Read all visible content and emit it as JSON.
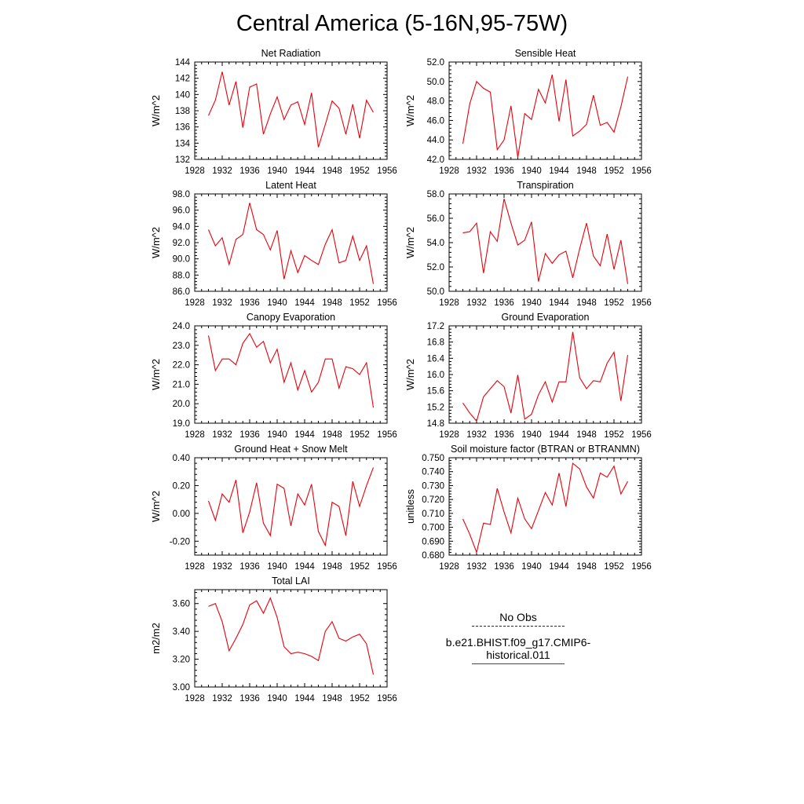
{
  "title": "Central America (5-16N,95-75W)",
  "x_ticks": [
    "1928",
    "1932",
    "1936",
    "1940",
    "1944",
    "1948",
    "1952",
    "1956"
  ],
  "legend": {
    "items": [
      {
        "label": "No Obs",
        "color": "#1a1a8c",
        "style": "dashed"
      },
      {
        "label": "b.e21.BHIST.f09_g17.CMIP6-historical.011",
        "color": "#e8000b",
        "style": "solid"
      }
    ]
  },
  "chart_data": [
    {
      "type": "line",
      "title": "Net Radiation",
      "ylabel": "W/m^2",
      "xlim": [
        1928,
        1956
      ],
      "ylim": [
        132,
        144
      ],
      "yticks": [
        "132",
        "134",
        "136",
        "138",
        "140",
        "142",
        "144"
      ],
      "x": [
        1930,
        1931,
        1932,
        1933,
        1934,
        1935,
        1936,
        1937,
        1938,
        1939,
        1940,
        1941,
        1942,
        1943,
        1944,
        1945,
        1946,
        1947,
        1948,
        1949,
        1950,
        1951,
        1952,
        1953,
        1954
      ],
      "series": [
        {
          "color": "#e8000b",
          "values": [
            137.4,
            139.3,
            142.8,
            138.7,
            141.6,
            135.9,
            140.9,
            141.3,
            135.1,
            137.6,
            139.7,
            136.9,
            138.7,
            139.1,
            136.3,
            140.2,
            133.5,
            136.3,
            139.2,
            138.3,
            135.1,
            138.8,
            134.6,
            139.3,
            137.8
          ]
        }
      ]
    },
    {
      "type": "line",
      "title": "Sensible Heat",
      "ylabel": "W/m^2",
      "xlim": [
        1928,
        1956
      ],
      "ylim": [
        42,
        52
      ],
      "yticks": [
        "42.0",
        "44.0",
        "46.0",
        "48.0",
        "50.0",
        "52.0"
      ],
      "x": [
        1930,
        1931,
        1932,
        1933,
        1934,
        1935,
        1936,
        1937,
        1938,
        1939,
        1940,
        1941,
        1942,
        1943,
        1944,
        1945,
        1946,
        1947,
        1948,
        1949,
        1950,
        1951,
        1952,
        1953,
        1954
      ],
      "series": [
        {
          "color": "#e8000b",
          "values": [
            43.6,
            47.7,
            50.0,
            49.3,
            48.9,
            43.0,
            44.0,
            47.5,
            42.2,
            46.7,
            46.1,
            49.2,
            47.8,
            50.7,
            45.9,
            50.2,
            44.4,
            44.9,
            45.6,
            48.6,
            45.5,
            45.8,
            44.8,
            47.4,
            50.5
          ]
        }
      ]
    },
    {
      "type": "line",
      "title": "Latent Heat",
      "ylabel": "W/m^2",
      "xlim": [
        1928,
        1956
      ],
      "ylim": [
        86,
        98
      ],
      "yticks": [
        "86.0",
        "88.0",
        "90.0",
        "92.0",
        "94.0",
        "96.0",
        "98.0"
      ],
      "x": [
        1930,
        1931,
        1932,
        1933,
        1934,
        1935,
        1936,
        1937,
        1938,
        1939,
        1940,
        1941,
        1942,
        1943,
        1944,
        1945,
        1946,
        1947,
        1948,
        1949,
        1950,
        1951,
        1952,
        1953,
        1954
      ],
      "series": [
        {
          "color": "#e8000b",
          "values": [
            93.6,
            91.6,
            92.6,
            89.3,
            92.4,
            93.0,
            96.9,
            93.6,
            93.0,
            91.1,
            93.5,
            87.5,
            91.0,
            88.3,
            90.4,
            89.8,
            89.3,
            91.8,
            93.6,
            89.5,
            89.8,
            92.8,
            89.8,
            91.6,
            86.9
          ]
        }
      ]
    },
    {
      "type": "line",
      "title": "Transpiration",
      "ylabel": "W/m^2",
      "xlim": [
        1928,
        1956
      ],
      "ylim": [
        50,
        58
      ],
      "yticks": [
        "50.0",
        "52.0",
        "54.0",
        "56.0",
        "58.0"
      ],
      "x": [
        1930,
        1931,
        1932,
        1933,
        1934,
        1935,
        1936,
        1937,
        1938,
        1939,
        1940,
        1941,
        1942,
        1943,
        1944,
        1945,
        1946,
        1947,
        1948,
        1949,
        1950,
        1951,
        1952,
        1953,
        1954
      ],
      "series": [
        {
          "color": "#e8000b",
          "values": [
            54.8,
            54.9,
            55.6,
            51.5,
            54.9,
            54.1,
            57.6,
            55.6,
            53.8,
            54.2,
            55.7,
            50.8,
            53.1,
            52.3,
            53.0,
            53.3,
            51.1,
            53.5,
            55.6,
            52.9,
            52.1,
            54.7,
            51.8,
            54.2,
            50.6
          ]
        }
      ]
    },
    {
      "type": "line",
      "title": "Canopy Evaporation",
      "ylabel": "W/m^2",
      "xlim": [
        1928,
        1956
      ],
      "ylim": [
        19,
        24
      ],
      "yticks": [
        "19.0",
        "20.0",
        "21.0",
        "22.0",
        "23.0",
        "24.0"
      ],
      "x": [
        1930,
        1931,
        1932,
        1933,
        1934,
        1935,
        1936,
        1937,
        1938,
        1939,
        1940,
        1941,
        1942,
        1943,
        1944,
        1945,
        1946,
        1947,
        1948,
        1949,
        1950,
        1951,
        1952,
        1953,
        1954
      ],
      "series": [
        {
          "color": "#e8000b",
          "values": [
            23.5,
            21.7,
            22.3,
            22.3,
            22.0,
            23.1,
            23.6,
            22.9,
            23.2,
            22.1,
            22.8,
            21.1,
            22.1,
            20.7,
            21.7,
            20.6,
            21.1,
            22.3,
            22.3,
            20.8,
            21.9,
            21.8,
            21.5,
            22.1,
            19.8
          ]
        }
      ]
    },
    {
      "type": "line",
      "title": "Ground Evaporation",
      "ylabel": "W/m^2",
      "xlim": [
        1928,
        1956
      ],
      "ylim": [
        14.8,
        17.2
      ],
      "yticks": [
        "14.8",
        "15.2",
        "15.6",
        "16.0",
        "16.4",
        "16.8",
        "17.2"
      ],
      "x": [
        1930,
        1931,
        1932,
        1933,
        1934,
        1935,
        1936,
        1937,
        1938,
        1939,
        1940,
        1941,
        1942,
        1943,
        1944,
        1945,
        1946,
        1947,
        1948,
        1949,
        1950,
        1951,
        1952,
        1953,
        1954
      ],
      "series": [
        {
          "color": "#e8000b",
          "values": [
            15.3,
            15.05,
            14.85,
            15.45,
            15.65,
            15.85,
            15.7,
            15.05,
            15.99,
            14.9,
            15.02,
            15.5,
            15.82,
            15.32,
            15.82,
            15.82,
            17.05,
            15.92,
            15.65,
            15.85,
            15.82,
            16.28,
            16.55,
            15.35,
            16.48
          ]
        }
      ]
    },
    {
      "type": "line",
      "title": "Ground Heat + Snow Melt",
      "ylabel": "W/m^2",
      "xlim": [
        1928,
        1956
      ],
      "ylim": [
        -0.3,
        0.4
      ],
      "yticks": [
        "-0.20",
        "0.00",
        "0.20",
        "0.40"
      ],
      "ytick_values": [
        -0.2,
        0.0,
        0.2,
        0.4
      ],
      "x": [
        1930,
        1931,
        1932,
        1933,
        1934,
        1935,
        1936,
        1937,
        1938,
        1939,
        1940,
        1941,
        1942,
        1943,
        1944,
        1945,
        1946,
        1947,
        1948,
        1949,
        1950,
        1951,
        1952,
        1953,
        1954
      ],
      "series": [
        {
          "color": "#e8000b",
          "values": [
            0.09,
            -0.05,
            0.14,
            0.08,
            0.24,
            -0.14,
            0.01,
            0.22,
            -0.07,
            -0.16,
            0.21,
            0.18,
            -0.09,
            0.14,
            0.06,
            0.21,
            -0.13,
            -0.23,
            0.08,
            0.05,
            -0.16,
            0.23,
            0.05,
            0.2,
            0.33
          ]
        }
      ]
    },
    {
      "type": "line",
      "title": "Soil moisture factor (BTRAN or BTRANMN)",
      "ylabel": "unitless",
      "xlim": [
        1928,
        1956
      ],
      "ylim": [
        0.68,
        0.75
      ],
      "yticks": [
        "0.680",
        "0.690",
        "0.700",
        "0.710",
        "0.720",
        "0.730",
        "0.740",
        "0.750"
      ],
      "x": [
        1930,
        1931,
        1932,
        1933,
        1934,
        1935,
        1936,
        1937,
        1938,
        1939,
        1940,
        1941,
        1942,
        1943,
        1944,
        1945,
        1946,
        1947,
        1948,
        1949,
        1950,
        1951,
        1952,
        1953,
        1954
      ],
      "series": [
        {
          "color": "#e8000b",
          "values": [
            0.706,
            0.695,
            0.682,
            0.703,
            0.702,
            0.728,
            0.711,
            0.696,
            0.721,
            0.706,
            0.699,
            0.712,
            0.725,
            0.716,
            0.739,
            0.715,
            0.746,
            0.742,
            0.729,
            0.721,
            0.739,
            0.736,
            0.744,
            0.724,
            0.733
          ]
        }
      ]
    },
    {
      "type": "line",
      "title": "Total LAI",
      "ylabel": "m2/m2",
      "xlim": [
        1928,
        1956
      ],
      "ylim": [
        3.0,
        3.7
      ],
      "yticks": [
        "3.00",
        "3.20",
        "3.40",
        "3.60"
      ],
      "ytick_values": [
        3.0,
        3.2,
        3.4,
        3.6
      ],
      "x": [
        1930,
        1931,
        1932,
        1933,
        1934,
        1935,
        1936,
        1937,
        1938,
        1939,
        1940,
        1941,
        1942,
        1943,
        1944,
        1945,
        1946,
        1947,
        1948,
        1949,
        1950,
        1951,
        1952,
        1953,
        1954
      ],
      "series": [
        {
          "color": "#e8000b",
          "values": [
            3.58,
            3.6,
            3.47,
            3.26,
            3.35,
            3.45,
            3.59,
            3.62,
            3.53,
            3.64,
            3.5,
            3.29,
            3.24,
            3.25,
            3.24,
            3.22,
            3.19,
            3.4,
            3.47,
            3.35,
            3.33,
            3.36,
            3.38,
            3.31,
            3.09
          ]
        }
      ]
    }
  ]
}
